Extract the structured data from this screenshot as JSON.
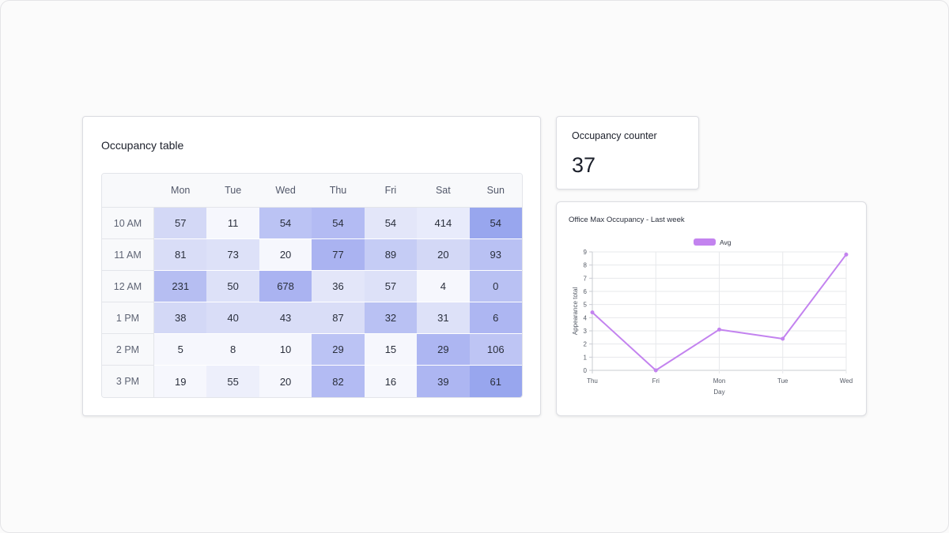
{
  "occupancy_table": {
    "title": "Occupancy table",
    "days": [
      "Mon",
      "Tue",
      "Wed",
      "Thu",
      "Fri",
      "Sat",
      "Sun"
    ],
    "rows": [
      {
        "time": "10 AM",
        "values": [
          "57",
          "11",
          "54",
          "54",
          "54",
          "414",
          "54"
        ]
      },
      {
        "time": "11 AM",
        "values": [
          "81",
          "73",
          "20",
          "77",
          "89",
          "20",
          "93"
        ]
      },
      {
        "time": "12 AM",
        "values": [
          "231",
          "50",
          "678",
          "36",
          "57",
          "4",
          "0"
        ]
      },
      {
        "time": "1 PM",
        "values": [
          "38",
          "40",
          "43",
          "87",
          "32",
          "31",
          "6"
        ]
      },
      {
        "time": "2 PM",
        "values": [
          "5",
          "8",
          "10",
          "29",
          "15",
          "29",
          "106"
        ]
      },
      {
        "time": "3 PM",
        "values": [
          "19",
          "55",
          "20",
          "82",
          "16",
          "39",
          "61"
        ]
      }
    ],
    "heat_colors": [
      [
        "#d3d8f6",
        "#f6f7fd",
        "#bbc3f4",
        "#b3bbf3",
        "#e3e6f9",
        "#e8ebfb",
        "#98a6ee"
      ],
      [
        "#d9ddf7",
        "#dde1f8",
        "#f6f7fd",
        "#aab3f1",
        "#c5ccf5",
        "#d3d8f6",
        "#b9c1f3"
      ],
      [
        "#b6bef2",
        "#dde1f8",
        "#aab3f1",
        "#e3e6f9",
        "#dde1f8",
        "#f6f7fd",
        "#b9c1f3"
      ],
      [
        "#d3d8f6",
        "#d9ddf7",
        "#d9ddf7",
        "#d9ddf7",
        "#b9c1f3",
        "#dde1f8",
        "#adb6f2"
      ],
      [
        "#f6f7fd",
        "#f6f7fd",
        "#f6f7fd",
        "#bbc3f4",
        "#f6f7fd",
        "#adb6f2",
        "#bec5f4"
      ],
      [
        "#f6f7fd",
        "#edeffb",
        "#f6f7fd",
        "#b3bbf3",
        "#f6f7fd",
        "#adb6f2",
        "#98a6ee"
      ]
    ]
  },
  "occupancy_counter": {
    "title": "Occupancy counter",
    "value": "37"
  },
  "chart_card": {
    "title": "Office Max Occupancy - Last week"
  },
  "chart_data": {
    "type": "line",
    "title": "Office Max Occupancy - Last week",
    "xlabel": "Day",
    "ylabel": "Appearance total",
    "categories": [
      "Thu",
      "Fri",
      "Mon",
      "Tue",
      "Wed"
    ],
    "series": [
      {
        "name": "Avg",
        "values": [
          4.4,
          0,
          3.1,
          2.4,
          8.8
        ],
        "color": "#c383ef"
      }
    ],
    "ylim": [
      0,
      9
    ],
    "yticks": [
      "0",
      "1",
      "2",
      "3",
      "4",
      "5",
      "6",
      "7",
      "8",
      "9"
    ],
    "grid": true,
    "legend": "top-center"
  }
}
